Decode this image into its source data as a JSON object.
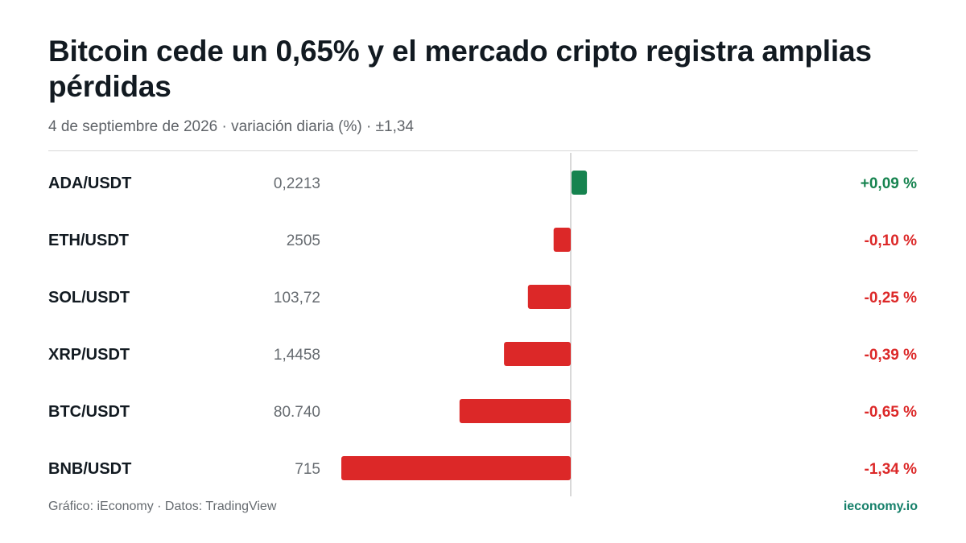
{
  "header": {
    "title": "Bitcoin cede un 0,65% y el mercado cripto registra amplias pérdidas",
    "subtitle": "4 de septiembre de 2026 · variación diaria (%) · ±1,34"
  },
  "footer": {
    "credit": "Gráfico: iEconomy · Datos: TradingView",
    "brand": "ieconomy.io"
  },
  "colors": {
    "positive": "#16834f",
    "negative": "#dc2828",
    "axis": "#d9d9d9"
  },
  "chart_data": {
    "type": "bar",
    "orientation": "horizontal",
    "title": "Bitcoin cede un 0,65% y el mercado cripto registra amplias pérdidas",
    "subtitle": "4 de septiembre de 2026 · variación diaria (%) · ±1,34",
    "xlim": [
      -1.34,
      1.34
    ],
    "grid": false,
    "categories": [
      "ADA/USDT",
      "ETH/USDT",
      "SOL/USDT",
      "XRP/USDT",
      "BTC/USDT",
      "BNB/USDT"
    ],
    "prices": [
      "0,2213",
      "2505",
      "103,72",
      "1,4458",
      "80.740",
      "715"
    ],
    "values": [
      0.09,
      -0.1,
      -0.25,
      -0.39,
      -0.65,
      -1.34
    ],
    "value_labels": [
      "+0,09 %",
      "-0,10 %",
      "-0,25 %",
      "-0,39 %",
      "-0,65 %",
      "-1,34 %"
    ]
  }
}
